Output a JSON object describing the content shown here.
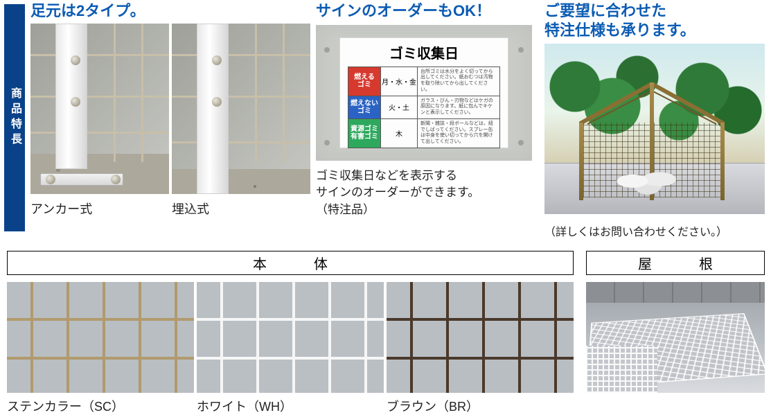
{
  "sidebar": {
    "label": "商品特長"
  },
  "foot": {
    "heading": "足元は2タイプ。",
    "type_a_label": "アンカー式",
    "type_b_label": "埋込式"
  },
  "sign": {
    "heading": "サインのオーダーもOK！",
    "board_title": "ゴミ収集日",
    "rows": [
      {
        "tag": "燃える\nゴミ",
        "tag_color": "#d63a2e",
        "day": "月・水・金",
        "note": "台所ゴミは水分をよく切ってから出してください。紙おむつは汚物を取り除いてから出してください。"
      },
      {
        "tag": "燃えない\nゴミ",
        "tag_color": "#2a63c4",
        "day": "火・土",
        "note": "ガラス・びん・刃物などはケガの原因になります。紙に包んでキケンと表示してください。"
      },
      {
        "tag": "資源ゴミ\n有害ゴミ",
        "tag_color": "#2ea85d",
        "day": "木",
        "note": "新聞・雑誌・段ボールなどは、紐でしばってください。スプレー缶は中身を使い切ってから穴を開けて出してください。"
      }
    ],
    "caption_l1": "ゴミ収集日などを表示する",
    "caption_l2": "サインのオーダーができます。",
    "caption_l3": "（特注品）"
  },
  "custom": {
    "heading_l1": "ご要望に合わせた",
    "heading_l2": "特注仕様も承ります。",
    "caption": "（詳しくはお問い合わせください。）"
  },
  "lower": {
    "hontai_header": "本　体",
    "yane_header": "屋　根",
    "swatches": [
      {
        "label": "ステンカラー（SC）",
        "bg": "#b9bec3",
        "line": "#b19a6d"
      },
      {
        "label": "ホワイト（WH）",
        "bg": "#babfc4",
        "line": "#f6f6f6"
      },
      {
        "label": "ブラウン（BR）",
        "bg": "#b9bec3",
        "line": "#4a392b"
      }
    ]
  },
  "colors": {
    "heading_blue": "#0b5bb3",
    "sidebar_blue": "#094289"
  }
}
